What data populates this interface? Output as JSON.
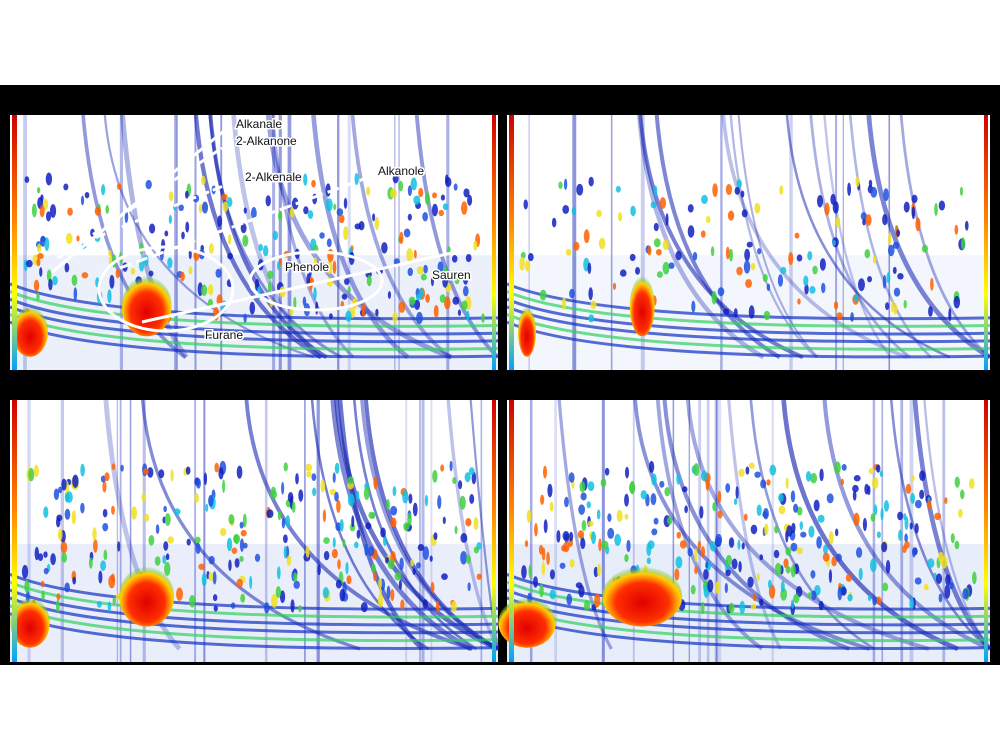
{
  "annotations": {
    "alkanale": "Alkanale",
    "alkanone": "2-Alkanone",
    "alkenale": "2-Alkenale",
    "alkanole": "Alkanole",
    "phenole": "Phenole",
    "saeuren": "Sauren",
    "furane": "Furane"
  }
}
